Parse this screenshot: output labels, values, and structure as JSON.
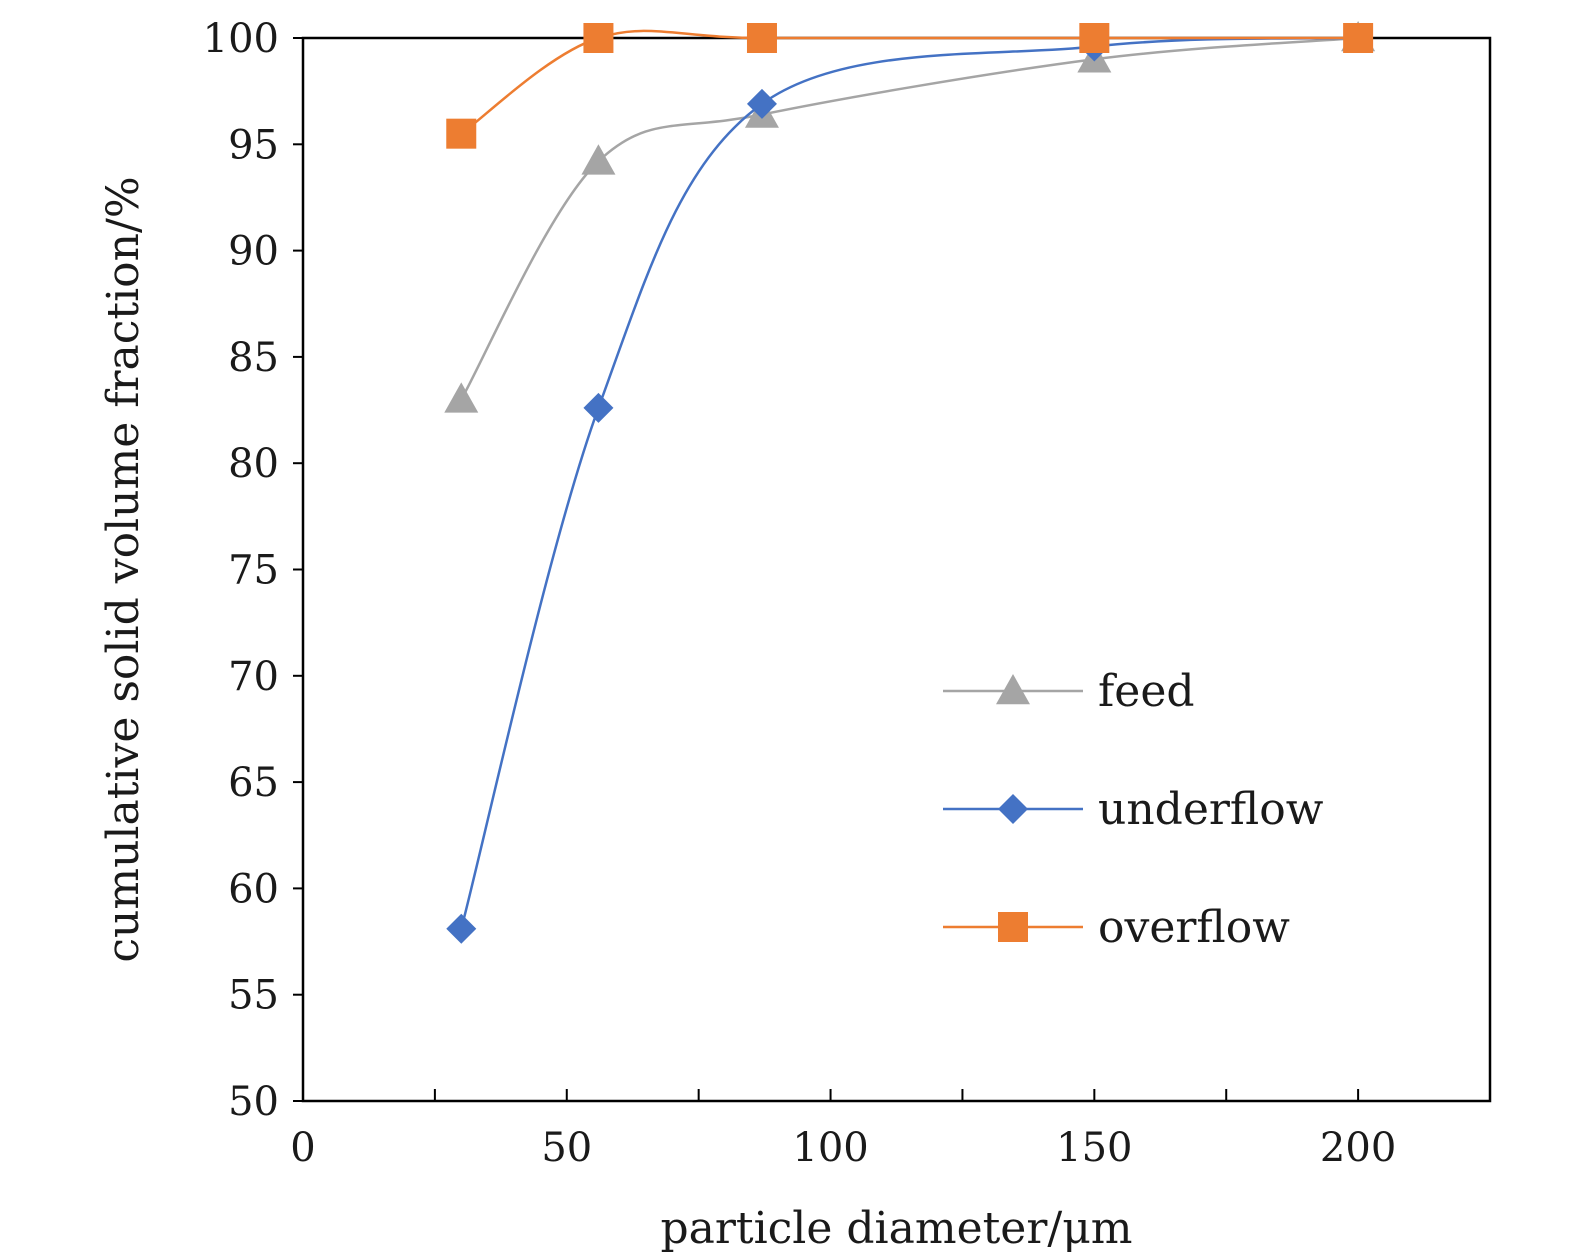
{
  "chart_data": {
    "type": "line",
    "xlabel": "particle diameter/μm",
    "ylabel": "cumulative solid volume fraction/%",
    "xlim": [
      0,
      225
    ],
    "ylim": [
      50,
      100
    ],
    "x_ticks": [
      0,
      50,
      100,
      150,
      200
    ],
    "x_minor_ticks": [
      25,
      75,
      125,
      175,
      225
    ],
    "y_ticks": [
      50,
      55,
      60,
      65,
      70,
      75,
      80,
      85,
      90,
      95,
      100
    ],
    "grid": false,
    "smooth": true,
    "legend_position": "lower-right",
    "series": [
      {
        "name": "feed",
        "marker": "triangle",
        "color": "#A5A5A5",
        "x": [
          30,
          56,
          87,
          150,
          200
        ],
        "y": [
          83.0,
          94.2,
          96.4,
          99.0,
          100
        ]
      },
      {
        "name": "underflow",
        "marker": "diamond",
        "color": "#4472C4",
        "x": [
          30,
          56,
          87,
          150,
          200
        ],
        "y": [
          58.1,
          82.6,
          96.9,
          99.6,
          100
        ]
      },
      {
        "name": "overflow",
        "marker": "square",
        "color": "#ED7D31",
        "x": [
          30,
          56,
          87,
          150,
          200
        ],
        "y": [
          95.5,
          100,
          100,
          100,
          100
        ]
      }
    ]
  }
}
